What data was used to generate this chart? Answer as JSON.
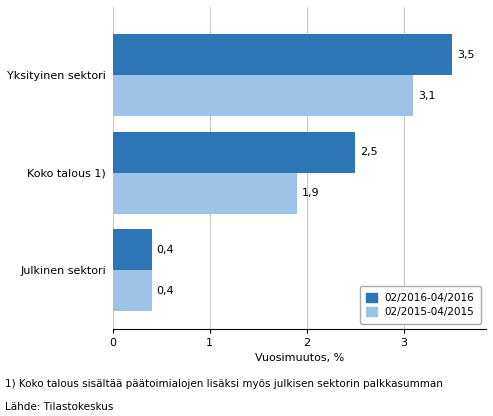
{
  "categories": [
    "Julkinen sektori",
    "Koko talous 1)",
    "Yksityinen sektori"
  ],
  "series_2016": [
    0.4,
    2.5,
    3.5
  ],
  "series_2015": [
    0.4,
    1.9,
    3.1
  ],
  "color_2016": "#2E75B6",
  "color_2015": "#9DC3E6",
  "xlabel": "Vuosimuutos, %",
  "legend_2016": "02/2016-04/2016",
  "legend_2015": "02/2015-04/2015",
  "footnote1": "1) Koko talous sisältää päätoimialojen lisäksi myös julkisen sektorin palkkasumman",
  "footnote2": "Lähde: Tilastokeskus",
  "xlim": [
    0,
    3.85
  ],
  "xticks": [
    0,
    1,
    2,
    3
  ],
  "bar_height": 0.42,
  "label_fontsize": 8,
  "tick_fontsize": 8,
  "legend_fontsize": 7.5,
  "footnote_fontsize": 7.5,
  "category_fontsize": 8
}
